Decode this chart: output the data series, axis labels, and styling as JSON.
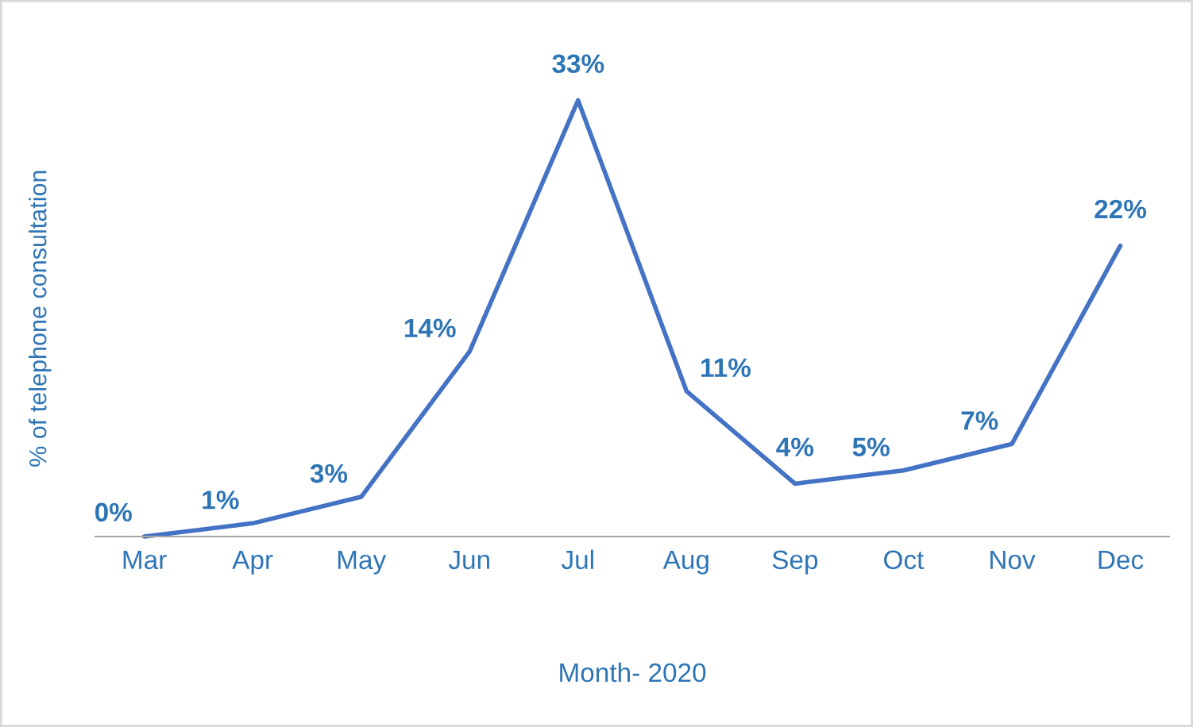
{
  "chart_data": {
    "type": "line",
    "xlabel": "Month- 2020",
    "ylabel": "% of telephone consultation",
    "categories": [
      "Mar",
      "Apr",
      "May",
      "Jun",
      "Jul",
      "Aug",
      "Sep",
      "Oct",
      "Nov",
      "Dec"
    ],
    "series": [
      {
        "color": "#4472c4",
        "values": [
          0,
          1,
          3,
          14,
          33,
          11,
          4,
          5,
          7,
          22
        ],
        "value_labels": [
          "0%",
          "1%",
          "3%",
          "14%",
          "33%",
          "11%",
          "4%",
          "5%",
          "7%",
          "22%"
        ]
      }
    ],
    "marker": "none",
    "line_style": "solid",
    "grid": false,
    "legend": false,
    "tick_labels": "x"
  }
}
